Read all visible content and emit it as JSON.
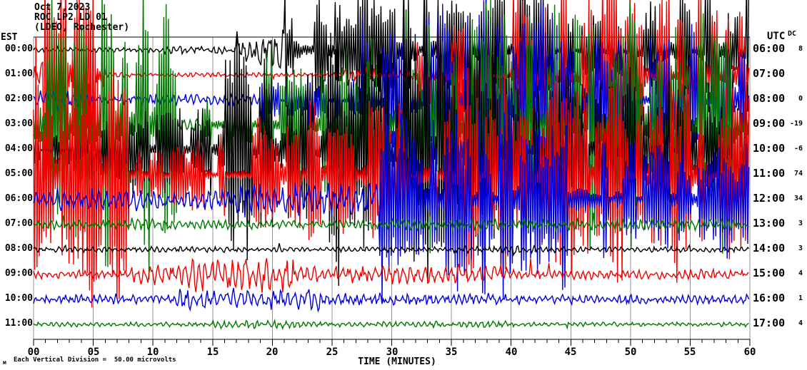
{
  "header": {
    "date": "Oct 7,2023",
    "station_line": "ROC LP2 LD 01",
    "location_line": "(LDEO, Rochester)"
  },
  "axes": {
    "left_timezone": "EST",
    "right_timezone": "UTC",
    "dc_column_label": "DC",
    "x_axis_title": "TIME (MINUTES)",
    "x_tick_labels": [
      "00",
      "05",
      "10",
      "15",
      "20",
      "25",
      "30",
      "35",
      "40",
      "45",
      "50",
      "55",
      "60"
    ]
  },
  "footer": {
    "scale_mark": "м",
    "scale_note": "Each Vertical Division =  50.00 microvolts"
  },
  "chart_data": {
    "type": "line",
    "subtype": "helicorder_seismogram",
    "title": "ROC LP2 LD 01 (LDEO, Rochester) Oct 7,2023",
    "xlabel": "TIME (MINUTES)",
    "x_range_minutes": [
      0,
      60
    ],
    "major_tick_minutes": 5,
    "minor_tick_minutes": 1,
    "grid": true,
    "rows_per_plot": 12,
    "minutes_per_row": 60,
    "vertical_division_microvolts": 50.0,
    "colors": {
      "black": "#000000",
      "red": "#f20000",
      "blue": "#0000dd",
      "green": "#007a00",
      "grid": "#949494",
      "axis": "#000000"
    },
    "rows": [
      {
        "est": "00:00",
        "utc": "06:00",
        "dc": "8",
        "color": "black",
        "amp_envelope_div": [
          [
            0,
            11,
            0.1
          ],
          [
            11,
            17,
            0.18
          ],
          [
            17,
            21,
            0.8
          ],
          [
            21,
            27,
            2.6
          ],
          [
            27,
            34,
            4.2
          ],
          [
            34,
            44,
            3.2
          ],
          [
            44,
            52,
            2.2
          ],
          [
            52,
            60,
            3.2
          ]
        ]
      },
      {
        "est": "01:00",
        "utc": "07:00",
        "dc": "",
        "color": "red",
        "amp_envelope_div": [
          [
            0,
            0.8,
            0.5
          ],
          [
            0.8,
            6,
            5.5
          ],
          [
            6,
            26,
            0.1
          ],
          [
            26,
            32,
            0.3
          ],
          [
            32,
            40,
            2.6
          ],
          [
            40,
            60,
            5.0
          ]
        ]
      },
      {
        "est": "02:00",
        "utc": "08:00",
        "dc": "0",
        "color": "blue",
        "amp_envelope_div": [
          [
            0,
            5,
            0.4
          ],
          [
            5,
            19,
            0.25
          ],
          [
            19,
            27,
            1.1
          ],
          [
            27,
            45,
            5.5
          ],
          [
            45,
            60,
            3.5
          ]
        ]
      },
      {
        "est": "03:00",
        "utc": "09:00",
        "dc": "-19",
        "color": "green",
        "amp_envelope_div": [
          [
            0,
            12,
            7.0
          ],
          [
            12,
            14,
            0.3
          ],
          [
            14,
            19,
            1.4
          ],
          [
            19,
            30,
            3.8
          ],
          [
            30,
            60,
            5.5
          ]
        ]
      },
      {
        "est": "04:00",
        "utc": "10:00",
        "dc": "-6",
        "color": "black",
        "amp_envelope_div": [
          [
            0,
            4,
            1.2
          ],
          [
            4,
            16,
            2.2
          ],
          [
            16,
            40,
            6.0
          ],
          [
            40,
            60,
            3.5
          ]
        ]
      },
      {
        "est": "05:00",
        "utc": "11:00",
        "dc": "74",
        "color": "red",
        "amp_envelope_div": [
          [
            0,
            8,
            6.5
          ],
          [
            8,
            18,
            1.8
          ],
          [
            18,
            34,
            3.5
          ],
          [
            34,
            60,
            4.5
          ]
        ]
      },
      {
        "est": "06:00",
        "utc": "12:00",
        "dc": "34",
        "color": "blue",
        "amp_envelope_div": [
          [
            0,
            9,
            0.5
          ],
          [
            9,
            17,
            0.4
          ],
          [
            17,
            29,
            0.7
          ],
          [
            29,
            48,
            4.5
          ],
          [
            48,
            60,
            2.5
          ]
        ]
      },
      {
        "est": "07:00",
        "utc": "13:00",
        "dc": "3",
        "color": "green",
        "amp_envelope_div": [
          [
            0,
            8,
            0.22
          ],
          [
            8,
            12,
            0.3
          ],
          [
            12,
            30,
            0.2
          ],
          [
            30,
            60,
            0.25
          ]
        ]
      },
      {
        "est": "08:00",
        "utc": "14:00",
        "dc": "3",
        "color": "black",
        "amp_envelope_div": [
          [
            0,
            35,
            0.12
          ],
          [
            35,
            42,
            0.18
          ],
          [
            42,
            60,
            0.12
          ]
        ]
      },
      {
        "est": "09:00",
        "utc": "15:00",
        "dc": "4",
        "color": "red",
        "amp_envelope_div": [
          [
            0,
            8,
            0.18
          ],
          [
            8,
            13,
            0.45
          ],
          [
            13,
            22,
            0.7
          ],
          [
            22,
            30,
            0.35
          ],
          [
            30,
            40,
            0.4
          ],
          [
            40,
            60,
            0.22
          ]
        ]
      },
      {
        "est": "10:00",
        "utc": "16:00",
        "dc": "1",
        "color": "blue",
        "amp_envelope_div": [
          [
            0,
            12,
            0.2
          ],
          [
            12,
            24,
            0.45
          ],
          [
            24,
            40,
            0.28
          ],
          [
            40,
            60,
            0.2
          ]
        ]
      },
      {
        "est": "11:00",
        "utc": "17:00",
        "dc": "4",
        "color": "green",
        "amp_envelope_div": [
          [
            0,
            15,
            0.1
          ],
          [
            15,
            22,
            0.18
          ],
          [
            22,
            33,
            0.12
          ],
          [
            33,
            40,
            0.16
          ],
          [
            40,
            60,
            0.1
          ]
        ]
      }
    ]
  }
}
